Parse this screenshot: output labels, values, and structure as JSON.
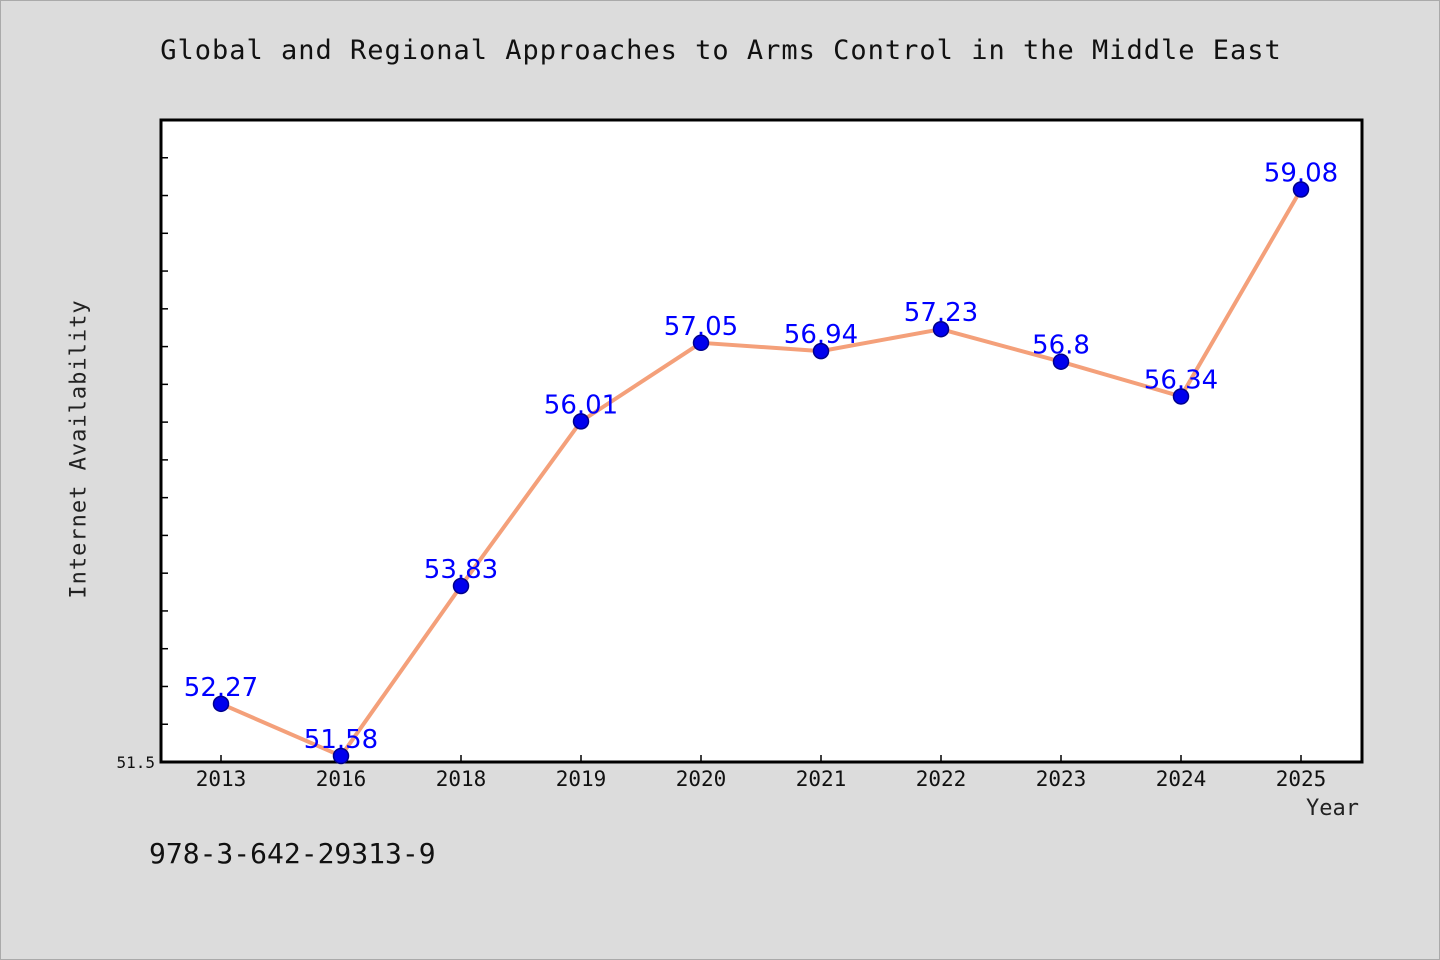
{
  "chart_data": {
    "type": "line",
    "title": "Global and Regional Approaches to Arms Control in the Middle East",
    "xlabel": "Year",
    "ylabel": "Internet Availability",
    "categories": [
      "2013",
      "2016",
      "2018",
      "2019",
      "2020",
      "2021",
      "2022",
      "2023",
      "2024",
      "2025"
    ],
    "series": [
      {
        "values": [
          52.27,
          51.58,
          53.83,
          56.01,
          57.05,
          56.94,
          57.23,
          56.8,
          56.34,
          59.08
        ],
        "data_labels": [
          "52.27",
          "51.58",
          "53.83",
          "56.01",
          "57.05",
          "56.94",
          "57.23",
          "56.8",
          "56.34",
          "59.08"
        ]
      }
    ],
    "y_min_label": "51.5",
    "ylim": [
      51.5,
      60.0
    ],
    "grid": false,
    "legend": "none",
    "colors": {
      "line": "#f4a07a",
      "marker": "#0000ee",
      "marker_edge": "#00008b",
      "data_label": "#0000ff",
      "background": "#dcdcdc",
      "plot_background": "#ffffff"
    }
  },
  "footer": {
    "isbn": "978-3-642-29313-9"
  }
}
